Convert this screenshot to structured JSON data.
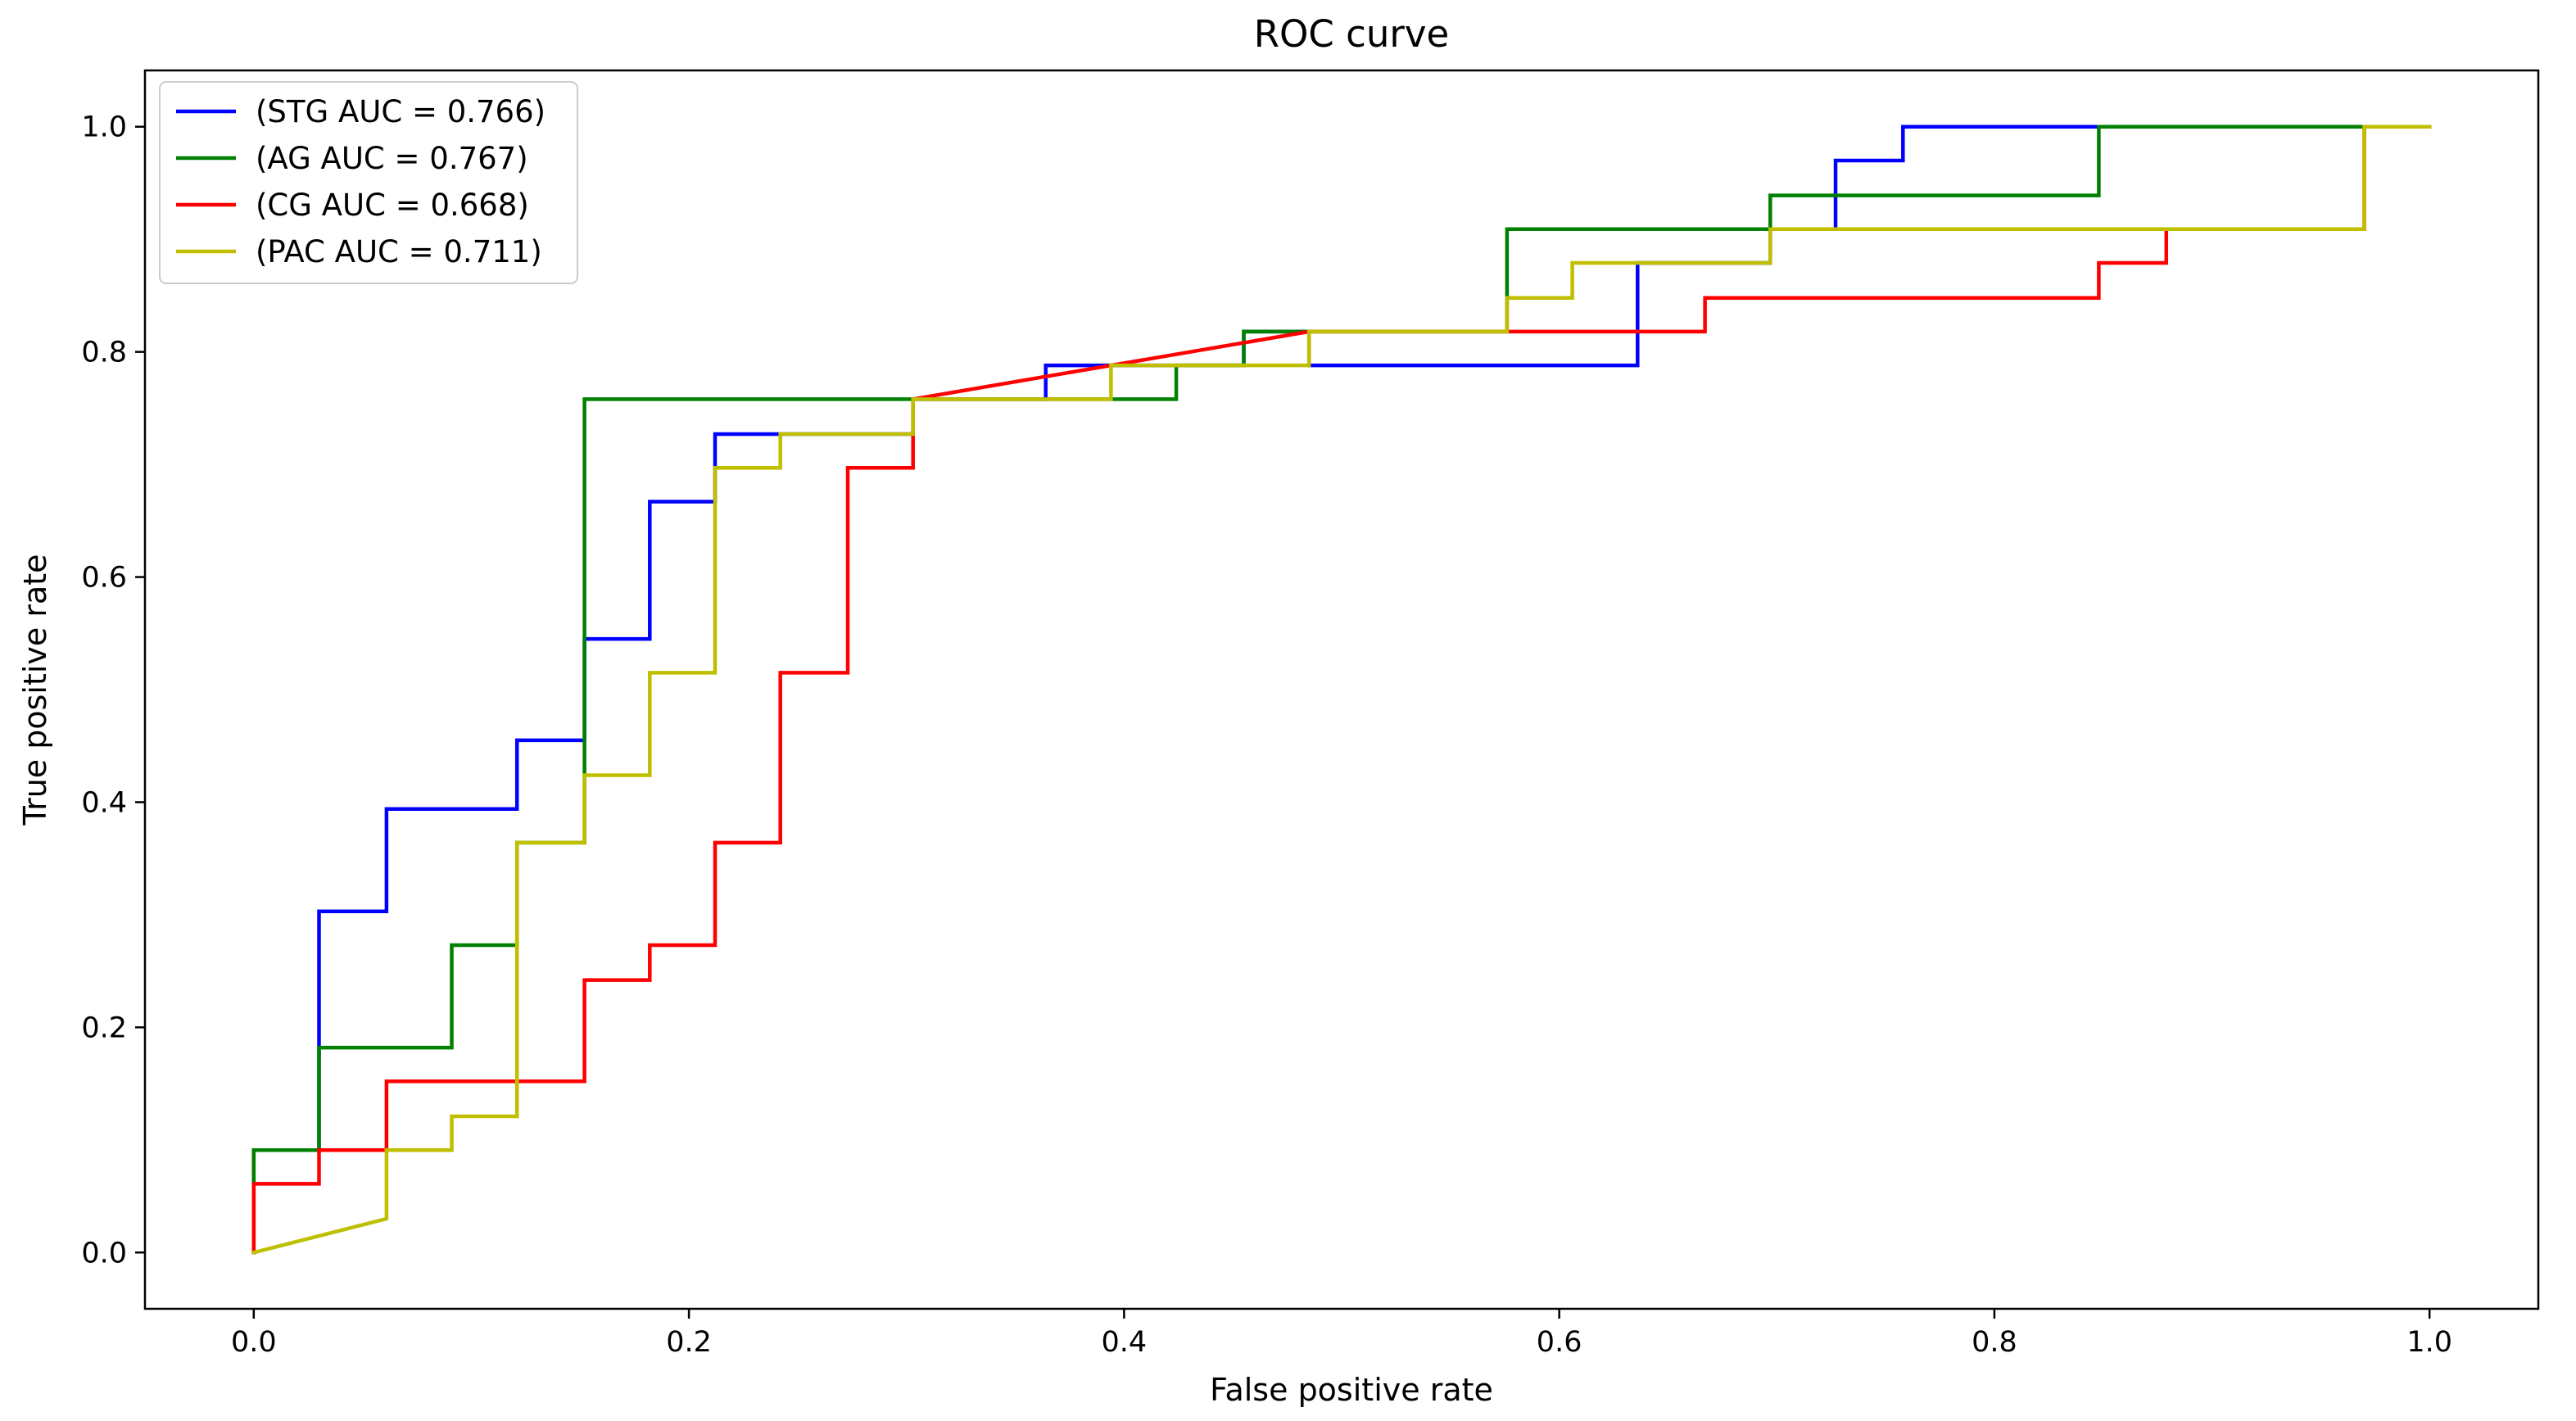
{
  "chart_data": {
    "type": "line",
    "title": "ROC curve",
    "xlabel": "False positive rate",
    "ylabel": "True positive rate",
    "xlim": [
      -0.05,
      1.05
    ],
    "ylim": [
      -0.05,
      1.05
    ],
    "x_ticks": [
      {
        "value": 0.0,
        "label": "0.0"
      },
      {
        "value": 0.2,
        "label": "0.2"
      },
      {
        "value": 0.4,
        "label": "0.4"
      },
      {
        "value": 0.6,
        "label": "0.6"
      },
      {
        "value": 0.8,
        "label": "0.8"
      },
      {
        "value": 1.0,
        "label": "1.0"
      }
    ],
    "y_ticks": [
      {
        "value": 0.0,
        "label": "0.0"
      },
      {
        "value": 0.2,
        "label": "0.2"
      },
      {
        "value": 0.4,
        "label": "0.4"
      },
      {
        "value": 0.6,
        "label": "0.6"
      },
      {
        "value": 0.8,
        "label": "0.8"
      },
      {
        "value": 1.0,
        "label": "1.0"
      }
    ],
    "grid": false,
    "legend_position": "upper-left",
    "series": [
      {
        "name": "(STG AUC = 0.766)",
        "color": "#0000ff",
        "points": [
          [
            0.0,
            0.0
          ],
          [
            0.0,
            0.091
          ],
          [
            0.03,
            0.091
          ],
          [
            0.03,
            0.303
          ],
          [
            0.061,
            0.303
          ],
          [
            0.061,
            0.394
          ],
          [
            0.121,
            0.394
          ],
          [
            0.121,
            0.455
          ],
          [
            0.152,
            0.455
          ],
          [
            0.152,
            0.545
          ],
          [
            0.182,
            0.545
          ],
          [
            0.182,
            0.667
          ],
          [
            0.212,
            0.667
          ],
          [
            0.212,
            0.727
          ],
          [
            0.242,
            0.727
          ],
          [
            0.303,
            0.727
          ],
          [
            0.303,
            0.758
          ],
          [
            0.364,
            0.758
          ],
          [
            0.364,
            0.788
          ],
          [
            0.394,
            0.788
          ],
          [
            0.455,
            0.788
          ],
          [
            0.455,
            0.818
          ],
          [
            0.485,
            0.818
          ],
          [
            0.485,
            0.788
          ],
          [
            0.636,
            0.788
          ],
          [
            0.636,
            0.879
          ],
          [
            0.697,
            0.879
          ],
          [
            0.697,
            0.909
          ],
          [
            0.727,
            0.909
          ],
          [
            0.727,
            0.97
          ],
          [
            0.758,
            0.97
          ],
          [
            0.758,
            1.0
          ],
          [
            0.97,
            1.0
          ],
          [
            1.0,
            1.0
          ]
        ]
      },
      {
        "name": "(AG AUC = 0.767)",
        "color": "#008000",
        "points": [
          [
            0.0,
            0.0
          ],
          [
            0.0,
            0.091
          ],
          [
            0.03,
            0.091
          ],
          [
            0.03,
            0.182
          ],
          [
            0.091,
            0.182
          ],
          [
            0.091,
            0.273
          ],
          [
            0.121,
            0.273
          ],
          [
            0.121,
            0.364
          ],
          [
            0.152,
            0.364
          ],
          [
            0.152,
            0.758
          ],
          [
            0.303,
            0.758
          ],
          [
            0.424,
            0.758
          ],
          [
            0.424,
            0.788
          ],
          [
            0.455,
            0.788
          ],
          [
            0.455,
            0.818
          ],
          [
            0.576,
            0.818
          ],
          [
            0.576,
            0.909
          ],
          [
            0.697,
            0.909
          ],
          [
            0.697,
            0.939
          ],
          [
            0.848,
            0.939
          ],
          [
            0.848,
            1.0
          ],
          [
            1.0,
            1.0
          ]
        ]
      },
      {
        "name": "(CG AUC = 0.668)",
        "color": "#ff0000",
        "points": [
          [
            0.0,
            0.0
          ],
          [
            0.0,
            0.061
          ],
          [
            0.03,
            0.061
          ],
          [
            0.03,
            0.091
          ],
          [
            0.061,
            0.091
          ],
          [
            0.061,
            0.152
          ],
          [
            0.152,
            0.152
          ],
          [
            0.152,
            0.242
          ],
          [
            0.182,
            0.242
          ],
          [
            0.182,
            0.273
          ],
          [
            0.212,
            0.273
          ],
          [
            0.212,
            0.364
          ],
          [
            0.242,
            0.364
          ],
          [
            0.242,
            0.515
          ],
          [
            0.273,
            0.515
          ],
          [
            0.273,
            0.697
          ],
          [
            0.303,
            0.697
          ],
          [
            0.303,
            0.758
          ],
          [
            0.485,
            0.818
          ],
          [
            0.667,
            0.818
          ],
          [
            0.667,
            0.848
          ],
          [
            0.848,
            0.848
          ],
          [
            0.848,
            0.879
          ],
          [
            0.879,
            0.879
          ],
          [
            0.879,
            0.909
          ],
          [
            0.97,
            0.909
          ],
          [
            0.97,
            1.0
          ],
          [
            1.0,
            1.0
          ]
        ]
      },
      {
        "name": "(PAC AUC = 0.711)",
        "color": "#bfbf00",
        "points": [
          [
            0.0,
            0.0
          ],
          [
            0.061,
            0.03
          ],
          [
            0.061,
            0.091
          ],
          [
            0.091,
            0.091
          ],
          [
            0.091,
            0.121
          ],
          [
            0.121,
            0.121
          ],
          [
            0.121,
            0.364
          ],
          [
            0.152,
            0.364
          ],
          [
            0.152,
            0.424
          ],
          [
            0.182,
            0.424
          ],
          [
            0.182,
            0.515
          ],
          [
            0.212,
            0.515
          ],
          [
            0.212,
            0.697
          ],
          [
            0.242,
            0.697
          ],
          [
            0.242,
            0.727
          ],
          [
            0.303,
            0.727
          ],
          [
            0.303,
            0.758
          ],
          [
            0.394,
            0.758
          ],
          [
            0.394,
            0.788
          ],
          [
            0.485,
            0.788
          ],
          [
            0.485,
            0.818
          ],
          [
            0.576,
            0.818
          ],
          [
            0.576,
            0.848
          ],
          [
            0.606,
            0.848
          ],
          [
            0.606,
            0.879
          ],
          [
            0.697,
            0.879
          ],
          [
            0.697,
            0.909
          ],
          [
            0.97,
            0.909
          ],
          [
            0.97,
            1.0
          ],
          [
            1.0,
            1.0
          ]
        ]
      }
    ]
  }
}
